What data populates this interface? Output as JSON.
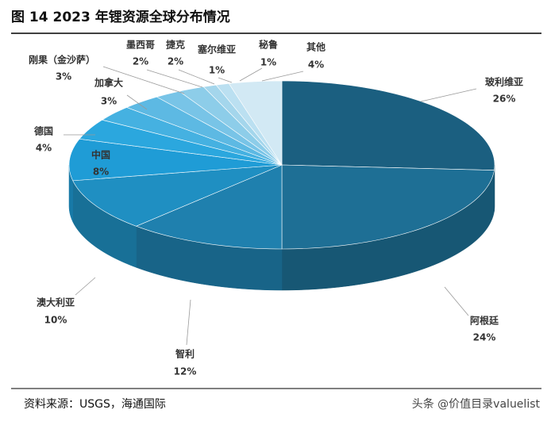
{
  "chart_data": {
    "type": "pie",
    "title": "图 14 2023 年锂资源全球分布情况",
    "categories": [
      "玻利维亚",
      "阿根廷",
      "智利",
      "澳大利亚",
      "中国",
      "德国",
      "加拿大",
      "刚果（金沙萨）",
      "墨西哥",
      "捷克",
      "塞尔维亚",
      "秘鲁",
      "其他"
    ],
    "values": [
      26,
      24,
      12,
      10,
      8,
      4,
      3,
      3,
      2,
      2,
      1,
      1,
      4
    ],
    "value_labels": [
      "26%",
      "24%",
      "12%",
      "10%",
      "8%",
      "4%",
      "3%",
      "3%",
      "2%",
      "2%",
      "1%",
      "1%",
      "4%"
    ],
    "colors": [
      "#1b5f80",
      "#1e6f95",
      "#1f80ae",
      "#1f8fc2",
      "#1f9cd6",
      "#2ba7de",
      "#45b1e1",
      "#5db9e3",
      "#78c4e7",
      "#8dcde9",
      "#a4d6ec",
      "#bbe0f1",
      "#d2e9f4"
    ],
    "source": "资料来源：USGS，海通国际",
    "watermark": "头条 @价值目录valuelist"
  }
}
